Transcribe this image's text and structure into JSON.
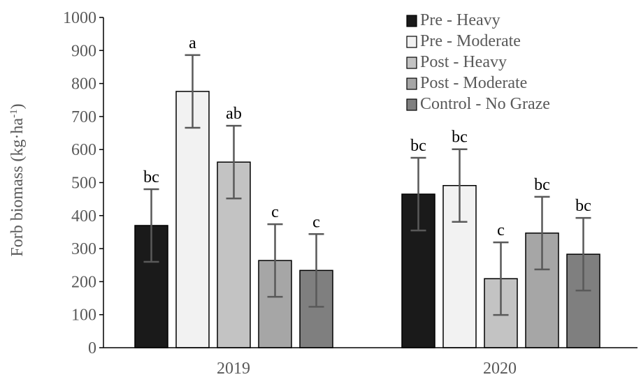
{
  "chart_data": {
    "type": "bar",
    "title": "",
    "xlabel": "",
    "ylabel": "Forb biomass (kg·ha",
    "ylabel_superscript": "-1",
    "ylabel_close": ")",
    "ylim": [
      0,
      1000
    ],
    "yticks": [
      "0",
      "100",
      "200",
      "300",
      "400",
      "500",
      "600",
      "700",
      "800",
      "900",
      "1000"
    ],
    "grid": false,
    "legend_position": "top-right",
    "categories": [
      "2019",
      "2020"
    ],
    "series": [
      {
        "name": "Pre - Heavy",
        "color": "#1a1a1a",
        "values": [
          370,
          465
        ],
        "errors": [
          110,
          110
        ],
        "letters": [
          "bc",
          "bc"
        ]
      },
      {
        "name": "Pre - Moderate",
        "color": "#f2f2f2",
        "values": [
          776,
          491
        ],
        "errors": [
          110,
          110
        ],
        "letters": [
          "a",
          "bc"
        ]
      },
      {
        "name": "Post - Heavy",
        "color": "#c3c3c3",
        "values": [
          562,
          209
        ],
        "errors": [
          110,
          110
        ],
        "letters": [
          "ab",
          "c"
        ]
      },
      {
        "name": "Post - Moderate",
        "color": "#a6a6a6",
        "values": [
          264,
          347
        ],
        "errors": [
          110,
          110
        ],
        "letters": [
          "c",
          "bc"
        ]
      },
      {
        "name": "Control - No Graze",
        "color": "#7f7f7f",
        "values": [
          234,
          283
        ],
        "errors": [
          110,
          110
        ],
        "letters": [
          "c",
          "bc"
        ]
      }
    ]
  }
}
